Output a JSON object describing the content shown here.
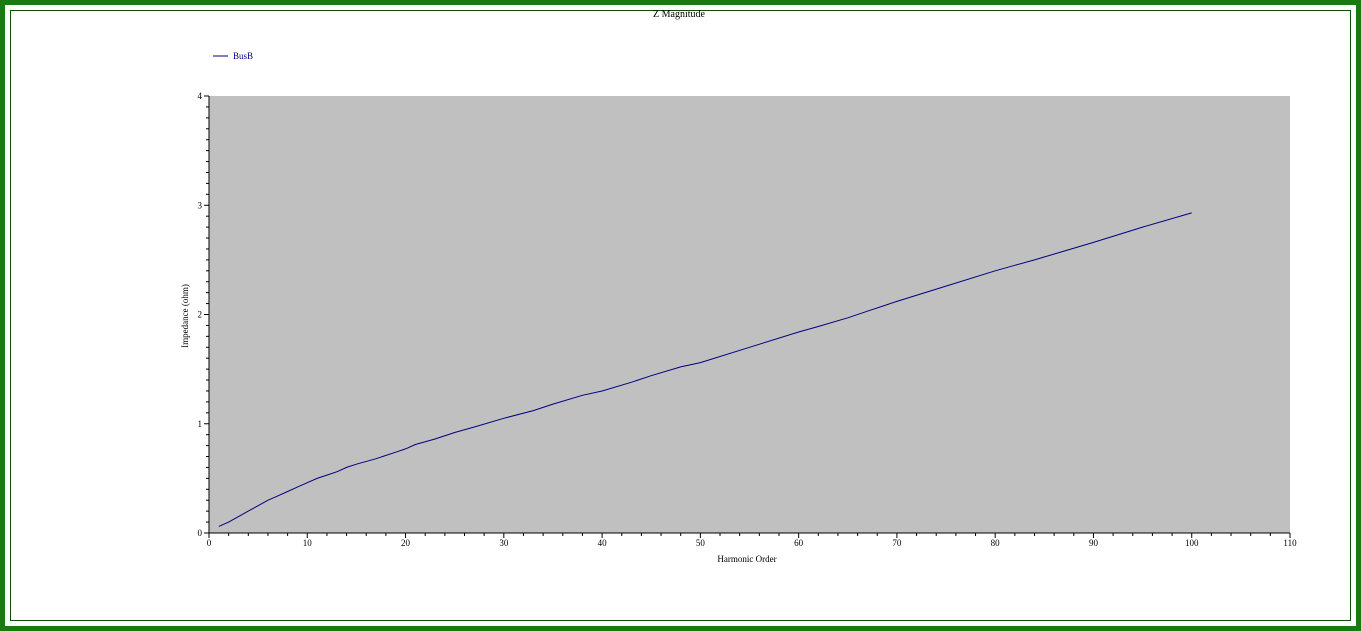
{
  "chart_data": {
    "type": "line",
    "title": "Z Magnitude",
    "xlabel": "Harmonic Order",
    "ylabel": "Impedance (ohm)",
    "xlim": [
      0,
      110
    ],
    "ylim": [
      0,
      4
    ],
    "xticks": [
      0,
      10,
      20,
      30,
      40,
      50,
      60,
      70,
      80,
      90,
      100,
      110
    ],
    "yticks": [
      0,
      1,
      2,
      3,
      4
    ],
    "legend_position": "top-left",
    "plot_background": "#c0c0c0",
    "series": [
      {
        "name": "BusB",
        "color": "#000080",
        "x": [
          1,
          2,
          3,
          4,
          5,
          6,
          7,
          8,
          9,
          10,
          11,
          12,
          13,
          14,
          15,
          17,
          19,
          20,
          21,
          23,
          25,
          27,
          30,
          33,
          35,
          38,
          40,
          43,
          45,
          48,
          50,
          55,
          60,
          62,
          65,
          67,
          70,
          75,
          80,
          82,
          84,
          87,
          90,
          95,
          100
        ],
        "y": [
          0.06,
          0.1,
          0.15,
          0.2,
          0.25,
          0.3,
          0.34,
          0.38,
          0.42,
          0.46,
          0.5,
          0.53,
          0.56,
          0.6,
          0.63,
          0.68,
          0.74,
          0.77,
          0.81,
          0.86,
          0.92,
          0.97,
          1.05,
          1.12,
          1.18,
          1.26,
          1.3,
          1.38,
          1.44,
          1.52,
          1.56,
          1.7,
          1.84,
          1.89,
          1.97,
          2.03,
          2.12,
          2.26,
          2.4,
          2.45,
          2.5,
          2.58,
          2.66,
          2.8,
          2.93
        ]
      }
    ]
  }
}
